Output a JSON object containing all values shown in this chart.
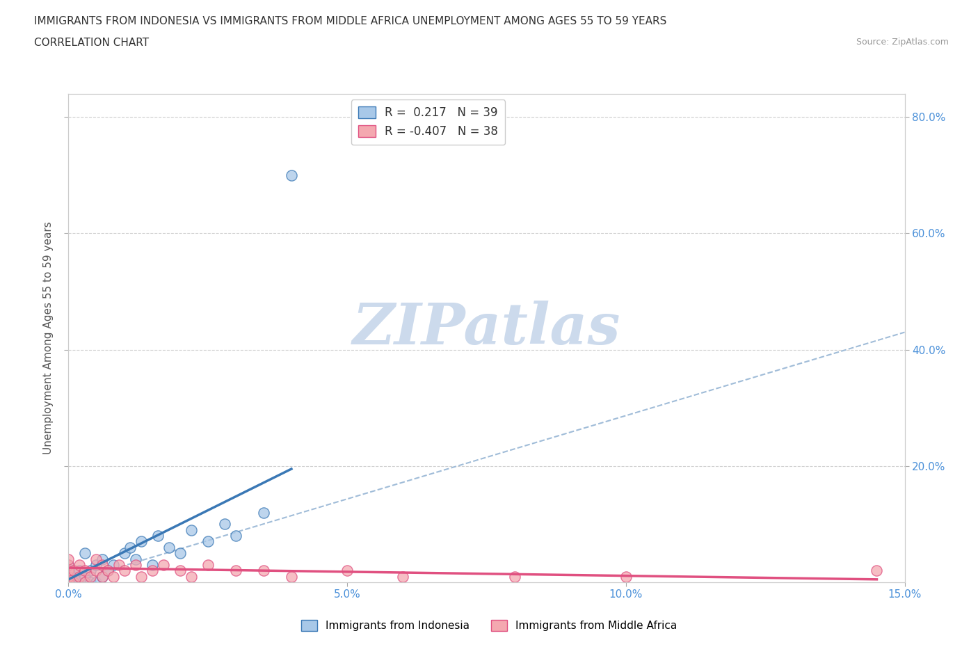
{
  "title_line1": "IMMIGRANTS FROM INDONESIA VS IMMIGRANTS FROM MIDDLE AFRICA UNEMPLOYMENT AMONG AGES 55 TO 59 YEARS",
  "title_line2": "CORRELATION CHART",
  "source_text": "Source: ZipAtlas.com",
  "ylabel": "Unemployment Among Ages 55 to 59 years",
  "xlim": [
    0.0,
    0.15
  ],
  "ylim": [
    0.0,
    0.84
  ],
  "xtick_vals": [
    0.0,
    0.05,
    0.1,
    0.15
  ],
  "xticklabels": [
    "0.0%",
    "5.0%",
    "10.0%",
    "15.0%"
  ],
  "ytick_right_vals": [
    0.2,
    0.4,
    0.6,
    0.8
  ],
  "yticklabels_right": [
    "20.0%",
    "40.0%",
    "60.0%",
    "80.0%"
  ],
  "legend_label1": "R =  0.217   N = 39",
  "legend_label2": "R = -0.407   N = 38",
  "color_indonesia": "#a8c8e8",
  "color_middle_africa": "#f4a8b0",
  "color_line_indonesia": "#3a78b5",
  "color_line_middle_africa": "#e05080",
  "color_dashed": "#a0bcd8",
  "watermark_text": "ZIPatlas",
  "watermark_color": "#ccdaec",
  "background_color": "#ffffff",
  "grid_color": "#d0d0d0",
  "indonesia_x": [
    0.0,
    0.0,
    0.0,
    0.0,
    0.0,
    0.0,
    0.0,
    0.0,
    0.001,
    0.001,
    0.001,
    0.002,
    0.002,
    0.002,
    0.003,
    0.003,
    0.003,
    0.004,
    0.004,
    0.005,
    0.005,
    0.006,
    0.006,
    0.007,
    0.008,
    0.01,
    0.011,
    0.012,
    0.013,
    0.015,
    0.016,
    0.018,
    0.02,
    0.022,
    0.025,
    0.028,
    0.03,
    0.035,
    0.04
  ],
  "indonesia_y": [
    0.0,
    0.0,
    0.0,
    0.0,
    0.01,
    0.01,
    0.02,
    0.03,
    0.0,
    0.01,
    0.02,
    0.0,
    0.01,
    0.02,
    0.0,
    0.01,
    0.05,
    0.0,
    0.02,
    0.0,
    0.03,
    0.01,
    0.04,
    0.02,
    0.03,
    0.05,
    0.06,
    0.04,
    0.07,
    0.03,
    0.08,
    0.06,
    0.05,
    0.09,
    0.07,
    0.1,
    0.08,
    0.12,
    0.7
  ],
  "middle_africa_x": [
    0.0,
    0.0,
    0.0,
    0.0,
    0.0,
    0.0,
    0.0,
    0.0,
    0.001,
    0.001,
    0.002,
    0.002,
    0.003,
    0.003,
    0.004,
    0.005,
    0.005,
    0.006,
    0.006,
    0.007,
    0.008,
    0.009,
    0.01,
    0.012,
    0.013,
    0.015,
    0.017,
    0.02,
    0.022,
    0.025,
    0.03,
    0.035,
    0.04,
    0.05,
    0.06,
    0.08,
    0.1,
    0.145
  ],
  "middle_africa_y": [
    0.0,
    0.0,
    0.0,
    0.01,
    0.01,
    0.02,
    0.03,
    0.04,
    0.0,
    0.02,
    0.01,
    0.03,
    0.0,
    0.02,
    0.01,
    0.02,
    0.04,
    0.01,
    0.03,
    0.02,
    0.01,
    0.03,
    0.02,
    0.03,
    0.01,
    0.02,
    0.03,
    0.02,
    0.01,
    0.03,
    0.02,
    0.02,
    0.01,
    0.02,
    0.01,
    0.01,
    0.01,
    0.02
  ],
  "indo_line_x0": 0.0,
  "indo_line_x1": 0.04,
  "indo_line_y0": 0.005,
  "indo_line_y1": 0.195,
  "ma_line_x0": 0.0,
  "ma_line_x1": 0.145,
  "ma_line_y0": 0.025,
  "ma_line_y1": 0.005,
  "dash_line_x0": 0.0,
  "dash_line_x1": 0.15,
  "dash_line_y0": 0.0,
  "dash_line_y1": 0.43
}
